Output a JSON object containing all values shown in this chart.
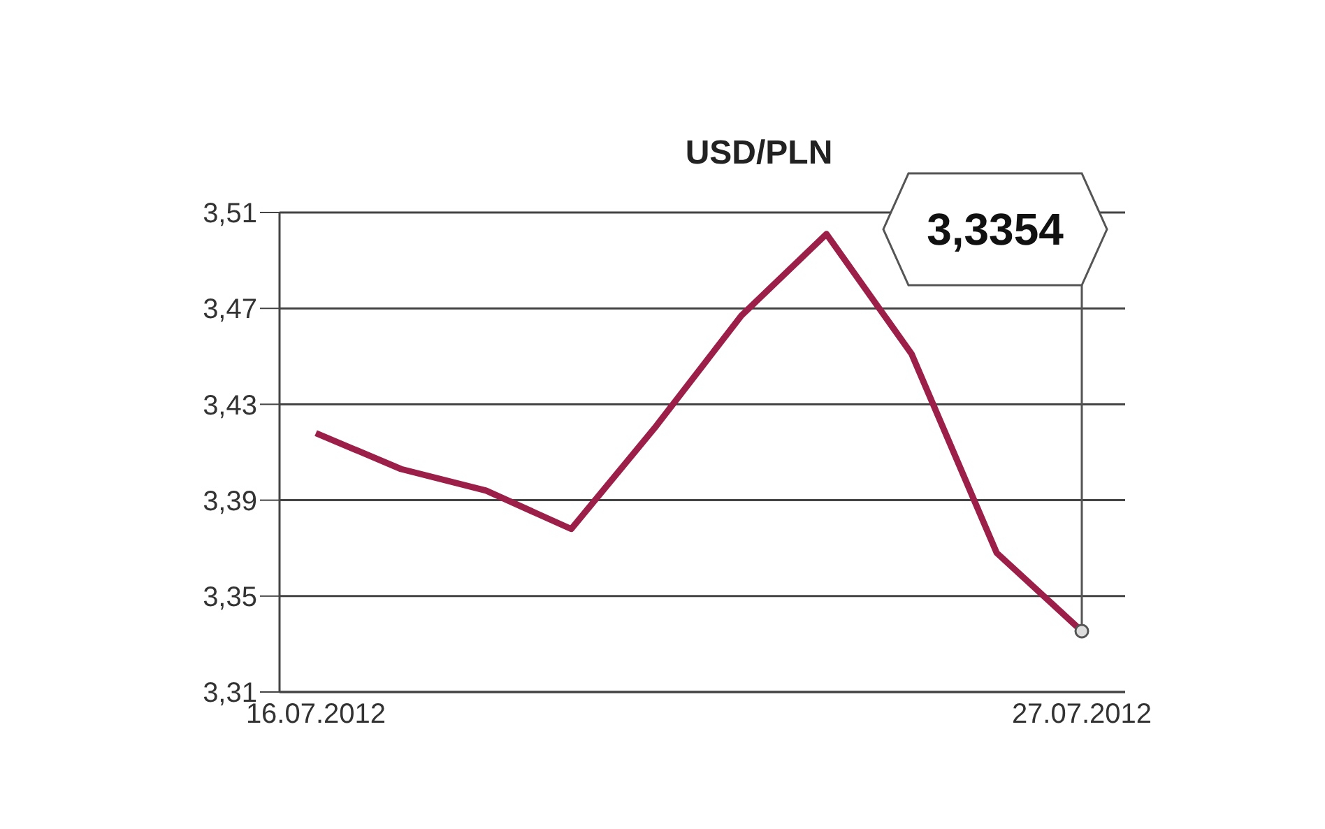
{
  "chart_data": {
    "type": "line",
    "title": "USD/PLN",
    "categories": [
      "16.07.2012",
      null,
      null,
      null,
      null,
      null,
      null,
      null,
      null,
      "27.07.2012"
    ],
    "series": [
      {
        "color": "#9b1f48",
        "values": [
          3.418,
          3.403,
          3.394,
          3.378,
          3.421,
          3.467,
          3.501,
          3.451,
          3.368,
          3.3354
        ]
      }
    ],
    "ylim": [
      3.31,
      3.51
    ],
    "yticks": [
      {
        "value": 3.31,
        "label": "3,31"
      },
      {
        "value": 3.35,
        "label": "3,35"
      },
      {
        "value": 3.39,
        "label": "3,39"
      },
      {
        "value": 3.43,
        "label": "3,43"
      },
      {
        "value": 3.47,
        "label": "3,47"
      },
      {
        "value": 3.51,
        "label": "3,51"
      }
    ],
    "annotations": [
      {
        "text": "3,3354",
        "x": "27.07.2012",
        "y": 3.3354
      }
    ],
    "grid": "y",
    "legend": false,
    "marker": "none",
    "line_style": "solid"
  }
}
